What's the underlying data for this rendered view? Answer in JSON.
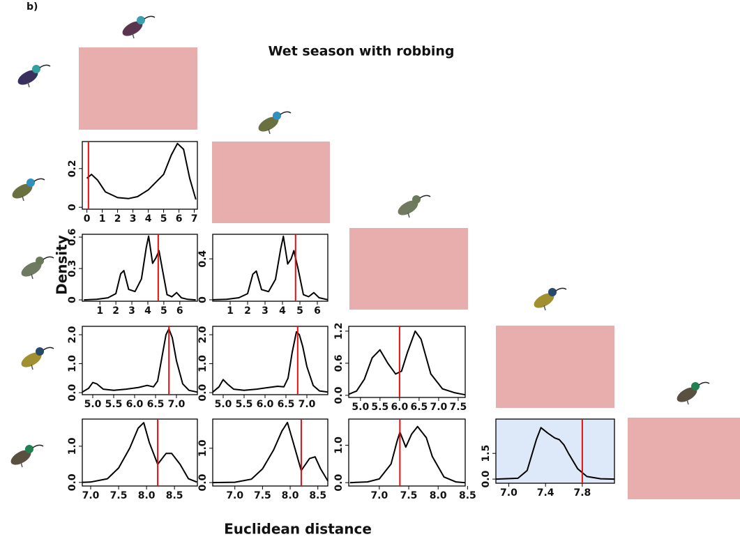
{
  "panel_label": "b)",
  "title": "Wet season with robbing",
  "ylabel": "Density",
  "xlabel": "Euclidean distance",
  "chart_data": [
    {
      "type": "line",
      "color": "#000000",
      "observed": 0.1,
      "observed_color": "#e01010",
      "background": "#ffffff",
      "x": [
        0,
        0.3,
        0.7,
        1.2,
        2,
        2.7,
        3.3,
        4,
        4.5,
        5,
        5.5,
        5.9,
        6.3,
        6.7,
        7.1
      ],
      "values": [
        0.15,
        0.17,
        0.14,
        0.08,
        0.05,
        0.045,
        0.055,
        0.09,
        0.13,
        0.17,
        0.27,
        0.33,
        0.3,
        0.15,
        0.04
      ],
      "xlim": [
        -0.3,
        7.2
      ],
      "ylim": [
        -0.01,
        0.34
      ],
      "xticks": [
        0,
        1,
        2,
        3,
        4,
        5,
        6,
        7
      ],
      "yticks": [
        0,
        0.2
      ]
    },
    {
      "type": "line",
      "color": "#000000",
      "observed": 4.65,
      "observed_color": "#e01010",
      "background": "#ffffff",
      "x": [
        0,
        0.8,
        1.5,
        2,
        2.3,
        2.5,
        2.8,
        3.2,
        3.6,
        3.9,
        4.05,
        4.3,
        4.5,
        4.7,
        4.9,
        5.2,
        5.5,
        5.8,
        6.1,
        6.5,
        7
      ],
      "values": [
        0,
        0.005,
        0.02,
        0.06,
        0.25,
        0.28,
        0.1,
        0.08,
        0.2,
        0.5,
        0.61,
        0.35,
        0.4,
        0.47,
        0.3,
        0.05,
        0.03,
        0.07,
        0.02,
        0.005,
        0
      ],
      "xlim": [
        -0.1,
        7.1
      ],
      "ylim": [
        -0.013,
        0.627
      ],
      "xticks": [
        1,
        2,
        3,
        4,
        5,
        6
      ],
      "yticks": [
        0,
        0.3,
        0.6
      ]
    },
    {
      "type": "line",
      "color": "#000000",
      "observed": 4.75,
      "observed_color": "#e01010",
      "background": "#ffffff",
      "x": [
        0,
        0.8,
        1.5,
        2,
        2.3,
        2.5,
        2.8,
        3.2,
        3.6,
        3.9,
        4.05,
        4.3,
        4.5,
        4.65,
        4.9,
        5.2,
        5.5,
        5.8,
        6.1,
        6.6
      ],
      "values": [
        0,
        0.005,
        0.02,
        0.06,
        0.25,
        0.28,
        0.1,
        0.08,
        0.2,
        0.5,
        0.62,
        0.35,
        0.4,
        0.48,
        0.3,
        0.05,
        0.03,
        0.07,
        0.02,
        0
      ],
      "xlim": [
        0,
        6.6
      ],
      "ylim": [
        -0.014,
        0.64
      ],
      "xticks": [
        1,
        2,
        3,
        4,
        5,
        6
      ],
      "yticks": [
        0,
        0.4
      ]
    },
    {
      "type": "line",
      "color": "#000000",
      "observed": 6.82,
      "observed_color": "#e01010",
      "background": "#ffffff",
      "x": [
        4.75,
        4.9,
        5,
        5.1,
        5.25,
        5.5,
        5.8,
        6.1,
        6.3,
        6.45,
        6.55,
        6.65,
        6.75,
        6.82,
        6.9,
        7,
        7.15,
        7.3,
        7.5
      ],
      "values": [
        0.02,
        0.15,
        0.35,
        0.3,
        0.12,
        0.08,
        0.12,
        0.18,
        0.25,
        0.2,
        0.4,
        1.2,
        2,
        2.2,
        1.9,
        1.1,
        0.3,
        0.08,
        0.02
      ],
      "xlim": [
        4.75,
        7.5
      ],
      "ylim": [
        -0.07,
        2.29
      ],
      "xticks": [
        {
          "value": 5,
          "label": "5.0"
        },
        5.5,
        {
          "value": 6,
          "label": "6.0"
        },
        6.5,
        {
          "value": 7,
          "label": "7.0"
        }
      ],
      "yticks": [
        {
          "value": 0,
          "label": "0.0"
        },
        {
          "value": 1,
          "label": "1.0"
        },
        {
          "value": 2,
          "label": "2.0"
        }
      ]
    },
    {
      "type": "line",
      "color": "#000000",
      "observed": 6.78,
      "observed_color": "#e01010",
      "background": "#ffffff",
      "x": [
        4.75,
        4.9,
        5,
        5.1,
        5.25,
        5.5,
        5.8,
        6.1,
        6.3,
        6.45,
        6.55,
        6.65,
        6.75,
        6.82,
        6.9,
        7,
        7.15,
        7.3,
        7.5
      ],
      "values": [
        0.02,
        0.2,
        0.45,
        0.3,
        0.12,
        0.08,
        0.12,
        0.18,
        0.22,
        0.2,
        0.5,
        1.4,
        2.1,
        2,
        1.6,
        0.9,
        0.25,
        0.06,
        0.02
      ],
      "xlim": [
        4.75,
        7.5
      ],
      "ylim": [
        -0.07,
        2.29
      ],
      "xticks": [
        {
          "value": 5,
          "label": "5.0"
        },
        5.5,
        {
          "value": 6,
          "label": "6.0"
        },
        6.5,
        {
          "value": 7,
          "label": "7.0"
        }
      ],
      "yticks": [
        {
          "value": 0,
          "label": "0.0"
        },
        {
          "value": 1,
          "label": "1.0"
        },
        {
          "value": 2,
          "label": "2.0"
        }
      ]
    },
    {
      "type": "line",
      "color": "#000000",
      "observed": 6,
      "observed_color": "#e01010",
      "background": "#ffffff",
      "x": [
        4.7,
        4.9,
        5.1,
        5.3,
        5.5,
        5.7,
        5.9,
        6.05,
        6.2,
        6.4,
        6.55,
        6.8,
        7.1,
        7.4,
        7.68
      ],
      "values": [
        0.02,
        0.08,
        0.3,
        0.7,
        0.85,
        0.6,
        0.4,
        0.45,
        0.8,
        1.2,
        1.05,
        0.4,
        0.12,
        0.05,
        0.01
      ],
      "xlim": [
        4.7,
        7.68
      ],
      "ylim": [
        -0.04,
        1.29
      ],
      "xticks": [
        {
          "value": 5,
          "label": "5.0"
        },
        5.5,
        {
          "value": 6,
          "label": "6.0"
        },
        6.5,
        {
          "value": 7,
          "label": "7.0"
        },
        7.5
      ],
      "yticks": [
        {
          "value": 0,
          "label": "0.0"
        },
        0.6,
        1.2
      ]
    },
    {
      "type": "line",
      "color": "#000000",
      "observed": 8.2,
      "observed_color": "#e01010",
      "background": "#ffffff",
      "x": [
        6.85,
        7,
        7.3,
        7.5,
        7.7,
        7.85,
        7.95,
        8.05,
        8.2,
        8.35,
        8.45,
        8.6,
        8.75,
        8.9
      ],
      "values": [
        0,
        0.01,
        0.1,
        0.4,
        0.95,
        1.5,
        1.65,
        1.1,
        0.5,
        0.8,
        0.8,
        0.5,
        0.1,
        0.01
      ],
      "xlim": [
        6.85,
        8.91
      ],
      "ylim": [
        -0.1,
        1.75
      ],
      "xticks": [
        {
          "value": 7,
          "label": "7.0"
        },
        7.5,
        {
          "value": 8,
          "label": "8.0"
        },
        8.5
      ],
      "yticks": [
        {
          "value": 0,
          "label": "0.0"
        },
        {
          "value": 1,
          "label": "1.0"
        }
      ]
    },
    {
      "type": "line",
      "color": "#000000",
      "observed": 8.2,
      "observed_color": "#e01010",
      "background": "#ffffff",
      "x": [
        6.6,
        7,
        7.3,
        7.5,
        7.7,
        7.85,
        7.95,
        8.05,
        8.2,
        8.35,
        8.45,
        8.55,
        8.68
      ],
      "values": [
        0,
        0.01,
        0.1,
        0.4,
        0.95,
        1.5,
        1.75,
        1.2,
        0.35,
        0.7,
        0.75,
        0.4,
        0.05
      ],
      "xlim": [
        6.6,
        8.68
      ],
      "ylim": [
        -0.1,
        1.85
      ],
      "xticks": [
        {
          "value": 7,
          "label": "7.0"
        },
        7.5,
        {
          "value": 8,
          "label": "8.0"
        },
        8.5
      ],
      "yticks": [
        {
          "value": 0,
          "label": "0.0"
        },
        {
          "value": 1,
          "label": "1.0"
        }
      ]
    },
    {
      "type": "line",
      "color": "#000000",
      "observed": 7.35,
      "observed_color": "#e01010",
      "background": "#ffffff",
      "x": [
        6.5,
        6.8,
        7,
        7.2,
        7.3,
        7.35,
        7.45,
        7.55,
        7.65,
        7.8,
        7.9,
        8.1,
        8.3,
        8.46
      ],
      "values": [
        0,
        0.02,
        0.1,
        0.5,
        1.1,
        1.35,
        0.95,
        1.3,
        1.5,
        1.2,
        0.7,
        0.15,
        0.02,
        0
      ],
      "xlim": [
        6.48,
        8.46
      ],
      "ylim": [
        -0.09,
        1.7
      ],
      "xticks": [
        {
          "value": 7,
          "label": "7.0"
        },
        7.5,
        {
          "value": 8,
          "label": "8.0"
        },
        8.5
      ],
      "yticks": [
        {
          "value": 0,
          "label": "0.0"
        },
        {
          "value": 1,
          "label": "1.0"
        }
      ]
    },
    {
      "type": "line",
      "color": "#000000",
      "observed": 7.8,
      "observed_color": "#e01010",
      "background": "#dde9f8",
      "x": [
        6.86,
        7.1,
        7.2,
        7.3,
        7.35,
        7.42,
        7.5,
        7.55,
        7.6,
        7.65,
        7.75,
        7.85,
        8,
        8.15
      ],
      "values": [
        0,
        0.05,
        0.5,
        2.3,
        3,
        2.7,
        2.4,
        2.3,
        2,
        1.5,
        0.6,
        0.15,
        0.02,
        0
      ],
      "xlim": [
        6.86,
        8.15
      ],
      "ylim": [
        -0.24,
        3.5
      ],
      "xticks": [
        {
          "value": 7,
          "label": "7.0"
        },
        7.4,
        7.8
      ],
      "yticks": [
        {
          "value": 0,
          "label": "0.0"
        },
        1.5
      ]
    }
  ]
}
